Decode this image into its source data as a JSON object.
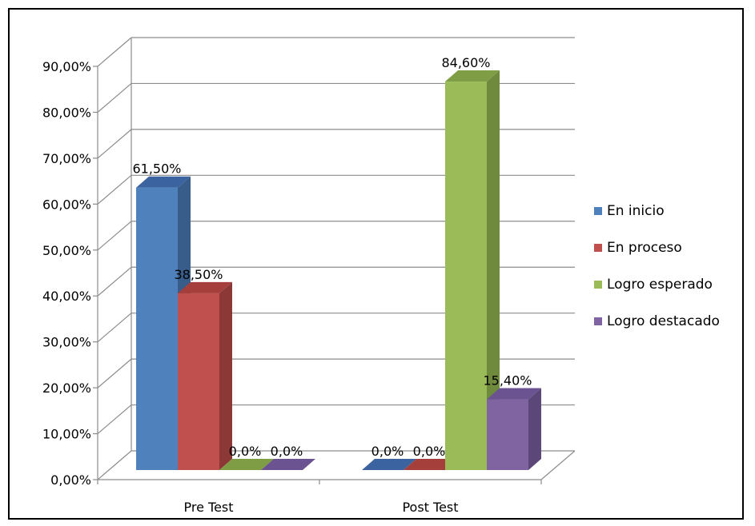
{
  "chart_data": {
    "type": "bar",
    "style": "3d-clustered-column",
    "categories": [
      "Pre Test",
      "Post Test"
    ],
    "series": [
      {
        "name": "En inicio",
        "values": [
          61.5,
          0
        ],
        "labels": [
          "61,50%",
          "0,0%"
        ],
        "color": "#4F81BD",
        "side_color": "#385D8A",
        "top_color": "#3A63A0"
      },
      {
        "name": "En proceso",
        "values": [
          38.5,
          0
        ],
        "labels": [
          "38,50%",
          "0,0%"
        ],
        "color": "#C0504D",
        "side_color": "#8C3836",
        "top_color": "#A43F3C"
      },
      {
        "name": "Logro esperado",
        "values": [
          0,
          84.6
        ],
        "labels": [
          "0,0%",
          "84,60%"
        ],
        "color": "#9BBB59",
        "side_color": "#6F8A3C",
        "top_color": "#7E9D45"
      },
      {
        "name": "Logro destacado",
        "values": [
          0,
          15.4
        ],
        "labels": [
          "0,0%",
          "15,40%"
        ],
        "color": "#8064A2",
        "side_color": "#5C4779",
        "top_color": "#6A5390"
      }
    ],
    "yticks": [
      "0,00%",
      "10,00%",
      "20,00%",
      "30,00%",
      "40,00%",
      "50,00%",
      "60,00%",
      "70,00%",
      "80,00%",
      "90,00%"
    ],
    "ylim": [
      0,
      90
    ],
    "grid": true,
    "legend_position": "right",
    "title": "",
    "xlabel": "",
    "ylabel": ""
  }
}
